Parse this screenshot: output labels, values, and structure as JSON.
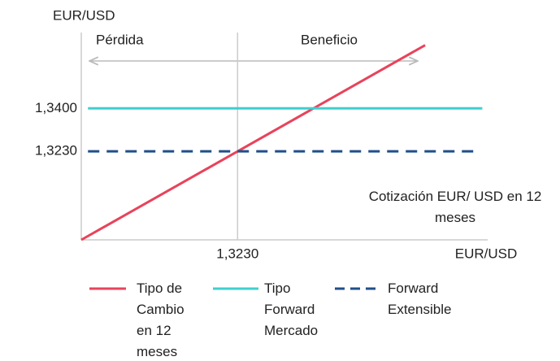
{
  "chart_data": {
    "type": "line",
    "y_label": "EUR/USD",
    "x_label": "EUR/USD",
    "annotations": [
      "Pérdida",
      "Beneficio",
      "Cotización EUR/ USD en 12 meses"
    ],
    "xlim": [
      1.288,
      1.379
    ],
    "ylim": [
      1.288,
      1.37
    ],
    "xticks": [
      {
        "value": 1.323,
        "label": "1,3230"
      }
    ],
    "yticks": [
      {
        "value": 1.34,
        "label": "1,3400"
      },
      {
        "value": 1.323,
        "label": "1,3230"
      }
    ],
    "series": [
      {
        "name": "Tipo de Cambio en 12 meses",
        "color": "#e8435b",
        "style": "solid",
        "x": [
          1.288,
          1.365
        ],
        "values": [
          1.288,
          1.365
        ]
      },
      {
        "name": "Tipo Forward Mercado",
        "color": "#3fcfcf",
        "style": "solid",
        "x": [
          1.2895,
          1.3778
        ],
        "values": [
          1.34,
          1.34
        ]
      },
      {
        "name": "Forward Extensible",
        "color": "#1f4f8a",
        "style": "dashed",
        "x": [
          1.2895,
          1.3763
        ],
        "values": [
          1.323,
          1.323
        ]
      }
    ]
  }
}
